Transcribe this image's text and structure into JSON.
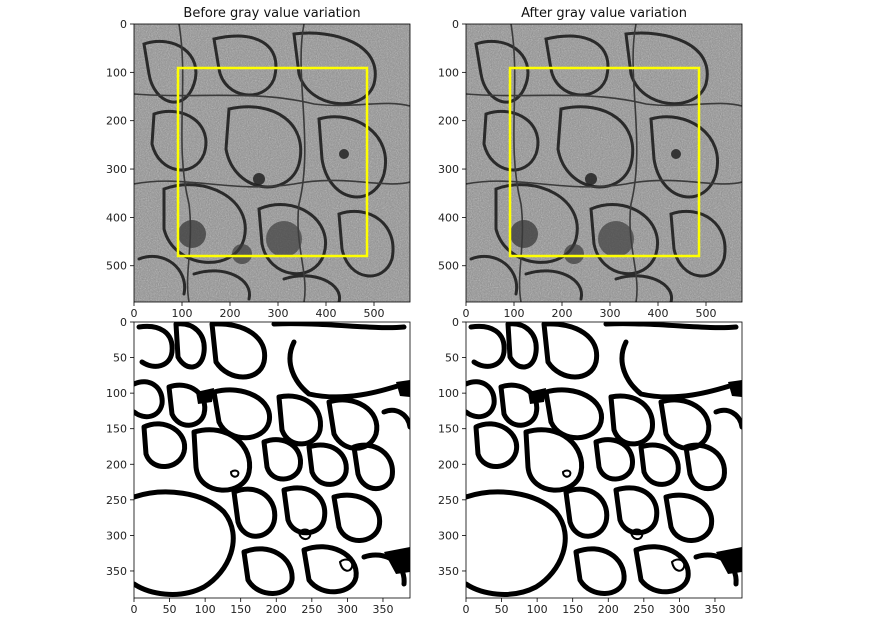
{
  "figure": {
    "panels": [
      {
        "title": "Before gray value variation",
        "image": "grayscale-em",
        "x_ticks": [
          "0",
          "100",
          "200",
          "300",
          "400",
          "500"
        ],
        "y_ticks": [
          "0",
          "100",
          "200",
          "300",
          "400",
          "500"
        ],
        "roi": {
          "x0": 90,
          "y0": 90,
          "x1": 480,
          "y1": 480
        },
        "roi_color": "#ffff00"
      },
      {
        "title": "After gray value variation",
        "image": "grayscale-em",
        "x_ticks": [
          "0",
          "100",
          "200",
          "300",
          "400",
          "500"
        ],
        "y_ticks": [
          "0",
          "100",
          "200",
          "300",
          "400",
          "500"
        ],
        "roi": {
          "x0": 90,
          "y0": 90,
          "x1": 480,
          "y1": 480
        },
        "roi_color": "#ffff00"
      },
      {
        "title": "",
        "image": "binary-segmentation",
        "x_ticks": [
          "0",
          "50",
          "100",
          "150",
          "200",
          "250",
          "300",
          "350"
        ],
        "y_ticks": [
          "0",
          "50",
          "100",
          "150",
          "200",
          "250",
          "300",
          "350"
        ]
      },
      {
        "title": "",
        "image": "binary-segmentation",
        "x_ticks": [
          "0",
          "50",
          "100",
          "150",
          "200",
          "250",
          "300",
          "350"
        ],
        "y_ticks": [
          "0",
          "50",
          "100",
          "150",
          "200",
          "250",
          "300",
          "350"
        ]
      }
    ]
  }
}
